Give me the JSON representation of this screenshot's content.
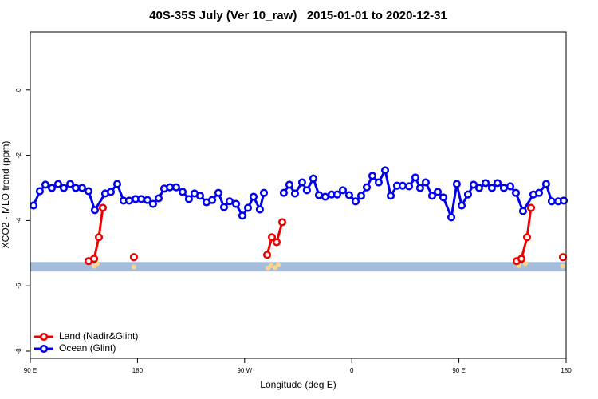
{
  "chart_data": {
    "type": "line",
    "title": "40S-35S July (Ver 10_raw)   2015-01-01 to 2020-12-31",
    "xlabel": "Longitude (deg E)",
    "ylabel": "XCO2 - MLO trend (ppm)",
    "xlim": [
      90,
      540
    ],
    "ylim": [
      -8.22,
      1.78
    ],
    "xticks": [
      {
        "value": 90,
        "label": "90 E"
      },
      180,
      {
        "value": 270,
        "label": "90 W"
      },
      {
        "value": 360,
        "label": "0"
      },
      {
        "value": 450,
        "label": "90 E"
      },
      {
        "value": 540,
        "label": "180"
      }
    ],
    "yticks": [
      -8,
      -6,
      -4,
      -2,
      0
    ],
    "legend": "bottomleft",
    "band": {
      "ymin": -5.56,
      "ymax": -5.27,
      "color": "#a5bddb"
    },
    "points": {
      "color": "#ffd58a",
      "x": [
        143.6,
        146.3,
        177.0,
        289.6,
        292.3,
        295.6,
        298.3,
        500.5,
        505.8,
        537.3
      ],
      "values": [
        -5.4,
        -5.32,
        -5.42,
        -5.45,
        -5.38,
        -5.44,
        -5.35,
        -5.38,
        -5.32,
        -5.4
      ]
    },
    "series": [
      {
        "name": "Land (Nadir&Glint)",
        "color": "#ee0000",
        "x": [
          138.9,
          143.6,
          147.6,
          150.9,
          null,
          177.0,
          null,
          288.9,
          292.9,
          296.9,
          301.6,
          null,
          498.5,
          502.5,
          507.2,
          510.5,
          null,
          537.3
        ],
        "values": [
          -5.24,
          -5.17,
          -4.51,
          -3.61,
          null,
          -5.12,
          null,
          -5.05,
          -4.51,
          -4.66,
          -4.05,
          null,
          -5.24,
          -5.17,
          -4.51,
          -3.61,
          null,
          -5.12
        ]
      },
      {
        "name": "Ocean (Glint)",
        "color": "#0000ee",
        "x": [
          92.7,
          98.0,
          102.7,
          108.1,
          113.4,
          118.1,
          123.5,
          128.2,
          133.5,
          138.9,
          144.2,
          152.9,
          157.6,
          163.0,
          168.3,
          173.0,
          178.4,
          183.1,
          188.4,
          193.1,
          197.8,
          202.5,
          207.2,
          212.5,
          217.9,
          223.2,
          227.9,
          232.6,
          238.0,
          242.7,
          248.0,
          252.7,
          257.4,
          262.8,
          268.1,
          272.8,
          277.5,
          282.8,
          286.2,
          null,
          302.9,
          307.6,
          312.3,
          318.3,
          322.3,
          327.7,
          332.4,
          337.7,
          343.1,
          347.8,
          352.5,
          357.8,
          363.2,
          367.9,
          372.6,
          377.3,
          382.6,
          388.0,
          392.7,
          398.0,
          402.7,
          408.1,
          413.4,
          417.4,
          422.1,
          427.5,
          432.2,
          436.9,
          443.6,
          448.2,
          452.3,
          457.6,
          462.3,
          467.0,
          472.4,
          477.7,
          482.4,
          487.7,
          493.1,
          497.8,
          503.8,
          512.5,
          517.2,
          523.2,
          527.9,
          533.3,
          538.0
        ],
        "values": [
          -3.54,
          -3.1,
          -2.9,
          -3.0,
          -2.88,
          -3.0,
          -2.88,
          -3.0,
          -3.0,
          -3.1,
          -3.68,
          -3.17,
          -3.12,
          -2.88,
          -3.39,
          -3.39,
          -3.34,
          -3.34,
          -3.37,
          -3.49,
          -3.32,
          -3.02,
          -2.98,
          -2.98,
          -3.12,
          -3.34,
          -3.17,
          -3.24,
          -3.44,
          -3.37,
          -3.15,
          -3.59,
          -3.41,
          -3.49,
          -3.85,
          -3.61,
          -3.27,
          -3.66,
          -3.15,
          null,
          -3.15,
          -2.9,
          -3.17,
          -2.83,
          -3.07,
          -2.71,
          -3.22,
          -3.27,
          -3.2,
          -3.2,
          -3.07,
          -3.22,
          -3.41,
          -3.24,
          -2.98,
          -2.63,
          -2.83,
          -2.46,
          -3.24,
          -2.93,
          -2.93,
          -2.95,
          -2.68,
          -3.0,
          -2.83,
          -3.24,
          -3.12,
          -3.29,
          -3.9,
          -2.88,
          -3.54,
          -3.2,
          -2.9,
          -3.0,
          -2.85,
          -3.0,
          -2.85,
          -3.0,
          -2.95,
          -3.15,
          -3.71,
          -3.2,
          -3.15,
          -2.88,
          -3.41,
          -3.41,
          -3.39
        ]
      }
    ]
  }
}
